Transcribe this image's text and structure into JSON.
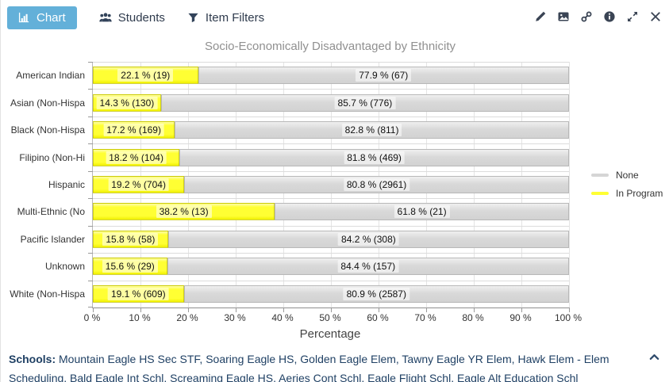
{
  "tabs": [
    {
      "label": "Chart",
      "icon": "bar-chart-icon",
      "active": true
    },
    {
      "label": "Students",
      "icon": "users-icon",
      "active": false
    },
    {
      "label": "Item Filters",
      "icon": "filter-icon",
      "active": false
    }
  ],
  "toolbar": {
    "icons": [
      "edit-pencil-icon",
      "export-image-icon",
      "link-icon",
      "info-icon",
      "expand-icon",
      "close-icon"
    ]
  },
  "chart_data": {
    "type": "bar",
    "orientation": "horizontal-stacked",
    "title": "Socio-Economically Disadvantaged by Ethnicity",
    "xlabel": "Percentage",
    "xlim": [
      0,
      100
    ],
    "x_ticks": [
      "0 %",
      "10 %",
      "20 %",
      "30 %",
      "40 %",
      "50 %",
      "60 %",
      "70 %",
      "80 %",
      "90 %",
      "100 %"
    ],
    "grid": true,
    "legend_position": "right",
    "categories": [
      "American Indian",
      "Asian (Non-Hispa",
      "Black (Non-Hispa",
      "Filipino (Non-Hi",
      "Hispanic",
      "Multi-Ethnic (No",
      "Pacific Islander",
      "Unknown",
      "White (Non-Hispa"
    ],
    "series": [
      {
        "name": "In Program",
        "color": "#ffff33",
        "values": [
          22.1,
          14.3,
          17.2,
          18.2,
          19.2,
          38.2,
          15.8,
          15.6,
          19.1
        ],
        "counts": [
          19,
          130,
          169,
          104,
          704,
          13,
          58,
          29,
          609
        ],
        "labels": [
          "22.1 % (19)",
          "14.3 % (130)",
          "17.2 % (169)",
          "18.2 % (104)",
          "19.2 % (704)",
          "38.2 % (13)",
          "15.8 % (58)",
          "15.6 % (29)",
          "19.1 % (609)"
        ]
      },
      {
        "name": "None",
        "color": "#d9d9d9",
        "values": [
          77.9,
          85.7,
          82.8,
          81.8,
          80.8,
          61.8,
          84.2,
          84.4,
          80.9
        ],
        "counts": [
          67,
          776,
          811,
          469,
          2961,
          21,
          308,
          157,
          2587
        ],
        "labels": [
          "77.9 % (67)",
          "85.7 % (776)",
          "82.8 % (811)",
          "81.8 % (469)",
          "80.8 % (2961)",
          "61.8 % (21)",
          "84.2 % (308)",
          "84.4 % (157)",
          "80.9 % (2587)"
        ]
      }
    ],
    "legend": [
      {
        "label": "None",
        "color": "#d5d5d5"
      },
      {
        "label": "In Program",
        "color": "#ffff33"
      }
    ]
  },
  "footer": {
    "schools_label": "Schools:",
    "schools_text": "Mountain Eagle HS Sec STF, Soaring Eagle HS, Golden Eagle Elem, Tawny Eagle YR Elem, Hawk Elem - Elem Scheduling, Bald Eagle Int Schl, Screaming Eagle HS, Aeries Cont Schl, Eagle Flight Schl, Eagle Alt Education Schl",
    "collapse_icon": "chevron-up-icon"
  }
}
